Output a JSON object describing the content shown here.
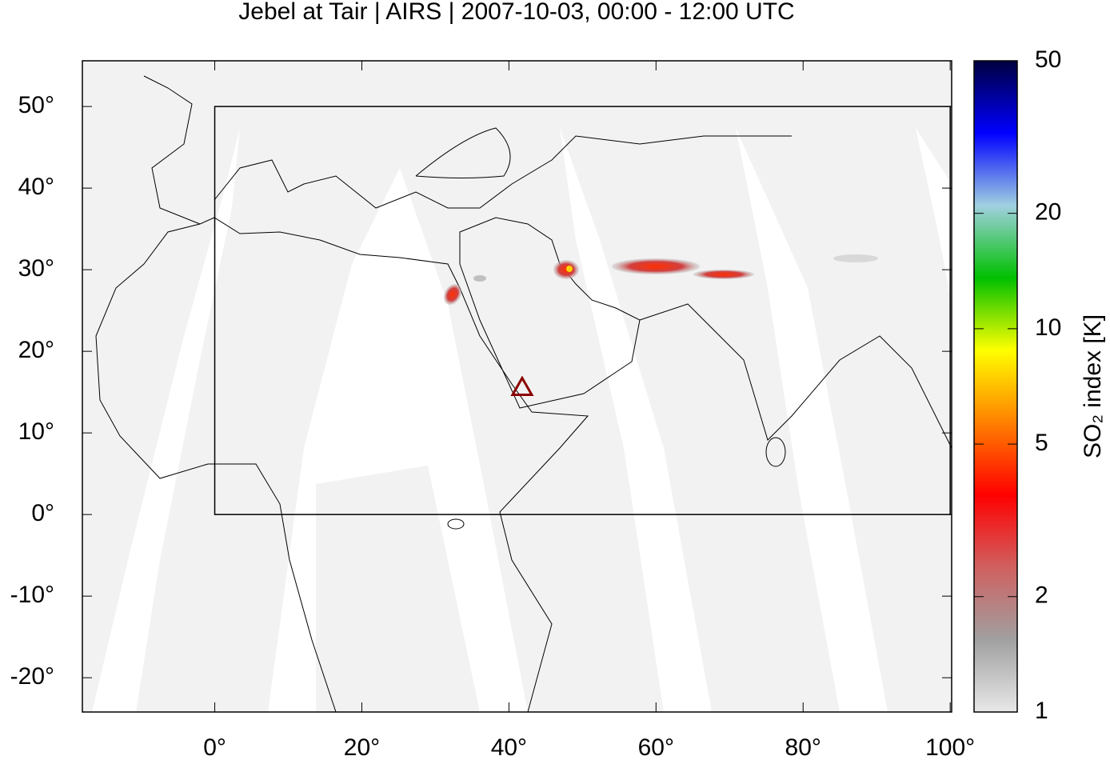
{
  "chart_data": {
    "type": "map",
    "title": "Jebel at Tair | AIRS | 2007-10-03, 00:00 - 12:00 UTC",
    "xlim": [
      -18,
      100.2
    ],
    "ylim": [
      -24.2,
      55.6
    ],
    "xticks": [
      {
        "value": 0,
        "label": "0°"
      },
      {
        "value": 20,
        "label": "20°"
      },
      {
        "value": 40,
        "label": "40°"
      },
      {
        "value": 60,
        "label": "60°"
      },
      {
        "value": 80,
        "label": "80°"
      },
      {
        "value": 100,
        "label": "100°"
      }
    ],
    "yticks": [
      {
        "value": -20,
        "label": "-20°"
      },
      {
        "value": -10,
        "label": "-10°"
      },
      {
        "value": 0,
        "label": "0°"
      },
      {
        "value": 10,
        "label": "10°"
      },
      {
        "value": 20,
        "label": "20°"
      },
      {
        "value": 30,
        "label": "30°"
      },
      {
        "value": 40,
        "label": "40°"
      },
      {
        "value": 50,
        "label": "50°"
      }
    ],
    "region": {
      "lon": [
        0,
        100
      ],
      "lat": [
        0,
        50
      ]
    },
    "volcano": {
      "lon": 41.8,
      "lat": 15.55,
      "color": "#8b0000"
    },
    "colorbar": {
      "label": "SO₂ index [K]",
      "log": true,
      "lim": [
        1,
        50
      ],
      "ticks": [
        1,
        2,
        5,
        10,
        20,
        50
      ],
      "colors": [
        "#e8e8e8",
        "#a0a0a0",
        "#d06060",
        "#ff0000",
        "#ff8000",
        "#ffff00",
        "#00c000",
        "#a0d0e0",
        "#0000ff",
        "#000040"
      ]
    }
  }
}
